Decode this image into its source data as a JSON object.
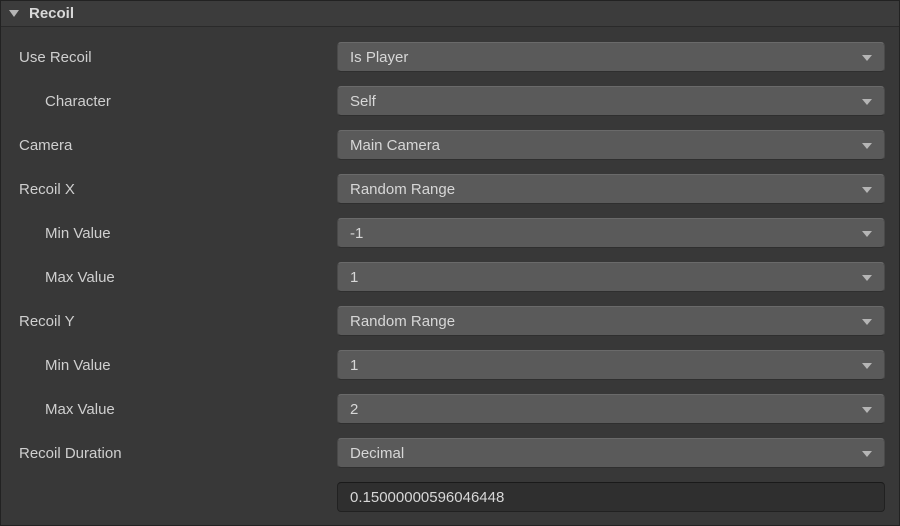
{
  "header": {
    "title": "Recoil"
  },
  "rows": {
    "useRecoil": {
      "label": "Use Recoil",
      "value": "Is Player"
    },
    "character": {
      "label": "Character",
      "value": "Self"
    },
    "camera": {
      "label": "Camera",
      "value": "Main Camera"
    },
    "recoilX": {
      "label": "Recoil X",
      "value": "Random Range"
    },
    "recoilXMin": {
      "label": "Min Value",
      "value": "-1"
    },
    "recoilXMax": {
      "label": "Max Value",
      "value": "1"
    },
    "recoilY": {
      "label": "Recoil Y",
      "value": "Random Range"
    },
    "recoilYMin": {
      "label": "Min Value",
      "value": "1"
    },
    "recoilYMax": {
      "label": "Max Value",
      "value": "2"
    },
    "recoilDuration": {
      "label": "Recoil Duration",
      "value": "Decimal"
    },
    "durationValue": {
      "label": "",
      "value": "0.15000000596046448"
    }
  }
}
